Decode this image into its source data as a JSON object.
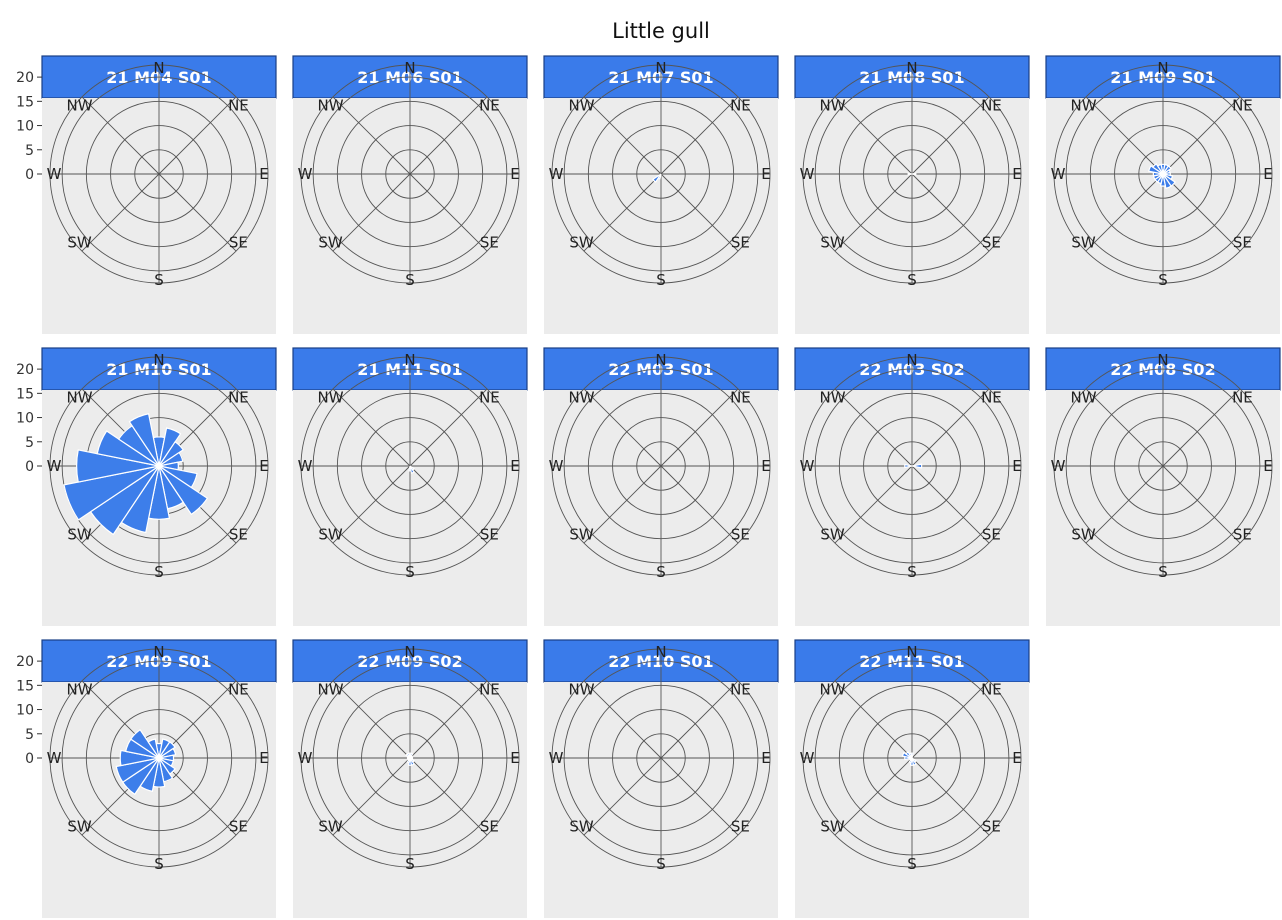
{
  "chart_data": {
    "type": "polar-bar",
    "title": "Little gull",
    "radial_ticks": [
      "0",
      "5",
      "10",
      "15",
      "20"
    ],
    "radial_max": 22.5,
    "directions": [
      "N",
      "NE",
      "E",
      "SE",
      "S",
      "SW",
      "W",
      "NW"
    ],
    "bin_centers_deg": [
      0,
      22.5,
      45,
      67.5,
      90,
      112.5,
      135,
      157.5,
      180,
      202.5,
      225,
      247.5,
      270,
      292.5,
      315,
      337.5
    ],
    "colors": {
      "bars": "#3d7eea",
      "strip": "#3a7bea",
      "strip_text": "#ffffff",
      "panel": "#ececec"
    },
    "panels": [
      {
        "label": "21 M04 S01",
        "values": [
          0,
          0,
          0,
          0,
          0,
          0,
          0,
          0,
          0,
          0,
          0,
          0,
          0,
          0,
          0,
          0
        ]
      },
      {
        "label": "21 M06 S01",
        "values": [
          0,
          0,
          0,
          0,
          0,
          0,
          0,
          0,
          0,
          0,
          0,
          0,
          0,
          0,
          0,
          0
        ]
      },
      {
        "label": "21 M07 S01",
        "values": [
          0,
          0,
          0,
          0,
          0,
          0,
          0,
          0,
          0,
          1,
          2,
          0,
          0,
          0,
          0,
          0
        ]
      },
      {
        "label": "21 M08 S01",
        "values": [
          0,
          0,
          0,
          0,
          0.8,
          0,
          0,
          0,
          0,
          0,
          0,
          0,
          0.8,
          0,
          0,
          0
        ]
      },
      {
        "label": "21 M09 S01",
        "values": [
          2,
          2,
          2,
          1.5,
          1.5,
          2,
          3,
          3,
          2.5,
          2,
          2,
          2,
          2,
          3,
          2.5,
          2
        ]
      },
      {
        "label": "21 M10 S01",
        "values": [
          6,
          8,
          6,
          5,
          4,
          8,
          12,
          9,
          11,
          14,
          17,
          20,
          17,
          13,
          10,
          11
        ]
      },
      {
        "label": "21 M11 S01",
        "values": [
          0,
          0,
          0,
          0,
          0,
          0,
          1,
          1.5,
          1,
          0,
          0,
          0,
          0,
          0,
          0,
          0
        ]
      },
      {
        "label": "22 M03 S01",
        "values": [
          0,
          0,
          0,
          0,
          0,
          0,
          0,
          0,
          0,
          0,
          0,
          0,
          0,
          0,
          0,
          0
        ]
      },
      {
        "label": "22 M03 S02",
        "values": [
          0,
          0,
          0,
          0,
          2,
          0,
          0,
          0,
          0,
          0,
          0,
          0,
          1.5,
          0,
          0,
          0
        ]
      },
      {
        "label": "22 M08 S02",
        "values": [
          0,
          0,
          0,
          0,
          0,
          0,
          0,
          0,
          0,
          0,
          0,
          0,
          0,
          0,
          0,
          0
        ]
      },
      {
        "label": "22 M09 S01",
        "values": [
          3,
          4,
          4,
          3.5,
          3,
          3,
          4,
          5,
          6,
          7,
          9,
          9,
          8,
          7,
          7,
          4
        ]
      },
      {
        "label": "22 M09 S02",
        "values": [
          1,
          1,
          0.5,
          0.5,
          0.5,
          0.5,
          1,
          1.5,
          1.5,
          1,
          0.5,
          0.5,
          0.5,
          0.5,
          1,
          1
        ]
      },
      {
        "label": "22 M10 S01",
        "values": [
          0,
          0,
          0,
          0,
          0,
          0,
          0,
          0,
          0,
          0,
          0,
          0,
          0,
          0,
          0,
          0
        ]
      },
      {
        "label": "22 M11 S01",
        "values": [
          1,
          0,
          0,
          0,
          0,
          0,
          1,
          1.5,
          1.5,
          1,
          0.5,
          0.5,
          1.5,
          2,
          1.5,
          1
        ]
      }
    ]
  }
}
